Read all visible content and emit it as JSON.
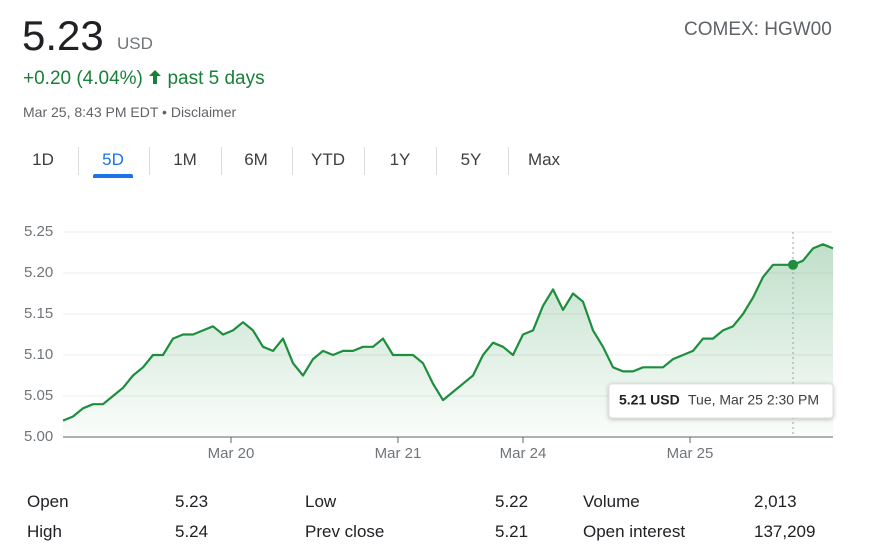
{
  "header": {
    "price": "5.23",
    "currency": "USD",
    "change": "+0.20 (4.04%)",
    "period": "past 5 days",
    "timestamp": "Mar 25, 8:43 PM EDT",
    "disclaimer": "Disclaimer",
    "ticker": "COMEX: HGW00"
  },
  "tabs": [
    "1D",
    "5D",
    "1M",
    "6M",
    "YTD",
    "1Y",
    "5Y",
    "Max"
  ],
  "selected_tab": "5D",
  "chart_data": {
    "type": "line",
    "x": [
      0,
      1,
      2,
      3,
      4,
      5,
      6,
      7,
      8,
      9,
      10,
      11,
      12,
      13,
      14,
      15,
      16,
      17,
      18,
      19,
      20,
      21,
      22,
      23,
      24,
      25,
      26,
      27,
      28,
      29,
      30,
      31,
      32,
      33,
      34,
      35,
      36,
      37,
      38,
      39,
      40,
      41,
      42,
      43,
      44,
      45,
      46,
      47,
      48,
      49,
      50,
      51,
      52,
      53,
      54,
      55,
      56,
      57,
      58,
      59,
      60,
      61,
      62,
      63,
      64,
      65,
      66,
      67,
      68,
      69,
      70,
      71,
      72,
      73,
      74,
      75,
      76,
      77
    ],
    "series": [
      {
        "name": "HGW00",
        "color": "#1e8e3e",
        "values": [
          5.02,
          5.025,
          5.035,
          5.04,
          5.04,
          5.05,
          5.06,
          5.075,
          5.085,
          5.1,
          5.1,
          5.12,
          5.125,
          5.125,
          5.13,
          5.135,
          5.125,
          5.13,
          5.14,
          5.13,
          5.11,
          5.105,
          5.12,
          5.09,
          5.075,
          5.095,
          5.105,
          5.1,
          5.105,
          5.105,
          5.11,
          5.11,
          5.12,
          5.1,
          5.1,
          5.1,
          5.09,
          5.065,
          5.045,
          5.055,
          5.065,
          5.075,
          5.1,
          5.115,
          5.11,
          5.1,
          5.125,
          5.13,
          5.16,
          5.18,
          5.155,
          5.175,
          5.165,
          5.13,
          5.11,
          5.085,
          5.08,
          5.08,
          5.085,
          5.085,
          5.085,
          5.095,
          5.1,
          5.105,
          5.12,
          5.12,
          5.13,
          5.135,
          5.15,
          5.17,
          5.195,
          5.21,
          5.21,
          5.21,
          5.215,
          5.23,
          5.235,
          5.23
        ]
      }
    ],
    "xlim": [
      0,
      77
    ],
    "xticks": [
      {
        "value": 16.8,
        "label": "Mar 20"
      },
      {
        "value": 33.5,
        "label": "Mar 21"
      },
      {
        "value": 46,
        "label": "Mar 24"
      },
      {
        "value": 62.7,
        "label": "Mar 25"
      }
    ],
    "ylim": [
      5.0,
      5.25
    ],
    "yticks": [
      {
        "value": 5.0,
        "label": "5.00"
      },
      {
        "value": 5.05,
        "label": "5.05"
      },
      {
        "value": 5.1,
        "label": "5.10"
      },
      {
        "value": 5.15,
        "label": "5.15"
      },
      {
        "value": 5.2,
        "label": "5.20"
      },
      {
        "value": 5.25,
        "label": "5.25"
      }
    ],
    "grid": true,
    "tooltip": {
      "value": "5.21 USD",
      "time": "Tue, Mar 25 2:30 PM"
    }
  },
  "stats": [
    [
      {
        "label": "Open",
        "value": "5.23"
      },
      {
        "label": "Low",
        "value": "5.22"
      },
      {
        "label": "Volume",
        "value": "2,013"
      }
    ],
    [
      {
        "label": "High",
        "value": "5.24"
      },
      {
        "label": "Prev close",
        "value": "5.21"
      },
      {
        "label": "Open interest",
        "value": "137,209"
      }
    ]
  ]
}
